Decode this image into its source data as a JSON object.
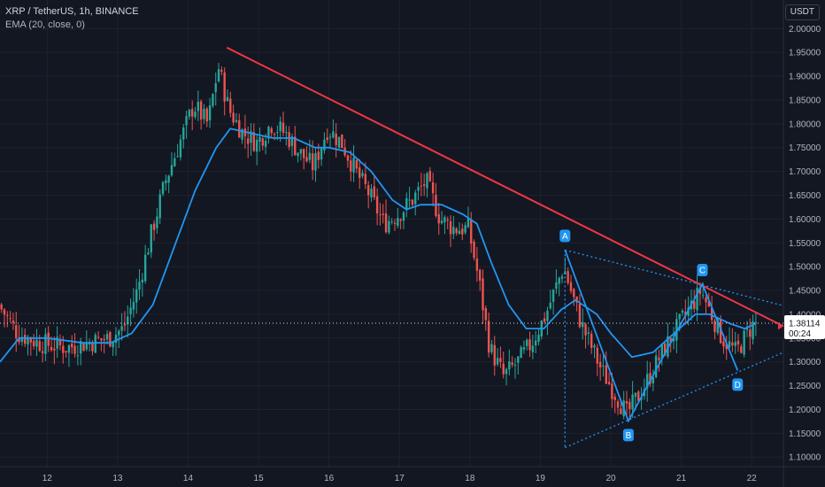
{
  "header": {
    "title": "XRP / TetherUS, 1h, BINANCE",
    "indicator": "EMA (20, close, 0)"
  },
  "currency_button": "USDT",
  "chart_data": {
    "type": "candlestick",
    "symbol": "XRP / TetherUS",
    "timeframe": "1h",
    "exchange": "BINANCE",
    "ylim": [
      1.08,
      2.06
    ],
    "y_ticks": [
      "2.00000",
      "1.95000",
      "1.90000",
      "1.85000",
      "1.80000",
      "1.75000",
      "1.70000",
      "1.65000",
      "1.60000",
      "1.55000",
      "1.50000",
      "1.45000",
      "1.40000",
      "1.35000",
      "1.30000",
      "1.25000",
      "1.20000",
      "1.15000",
      "1.10000"
    ],
    "x_range_days": [
      11.33,
      22.45
    ],
    "x_ticks": [
      {
        "day": 12,
        "label": "12"
      },
      {
        "day": 13,
        "label": "13"
      },
      {
        "day": 14,
        "label": "14"
      },
      {
        "day": 15,
        "label": "15"
      },
      {
        "day": 16,
        "label": "16"
      },
      {
        "day": 17,
        "label": "17"
      },
      {
        "day": 18,
        "label": "18"
      },
      {
        "day": 19,
        "label": "19"
      },
      {
        "day": 20,
        "label": "20"
      },
      {
        "day": 21,
        "label": "21"
      },
      {
        "day": 22,
        "label": "22"
      }
    ],
    "colors": {
      "up": "#26a69a",
      "down": "#ef5350",
      "ema": "#2196f3",
      "trend": "#f23645",
      "pattern": "#2196f3",
      "triangle": "#2196f3"
    },
    "price_path": [
      [
        11.33,
        1.42
      ],
      [
        11.6,
        1.36
      ],
      [
        11.9,
        1.34
      ],
      [
        12.3,
        1.33
      ],
      [
        12.6,
        1.34
      ],
      [
        12.9,
        1.35
      ],
      [
        13.1,
        1.37
      ],
      [
        13.3,
        1.45
      ],
      [
        13.5,
        1.57
      ],
      [
        13.7,
        1.68
      ],
      [
        13.9,
        1.76
      ],
      [
        14.1,
        1.84
      ],
      [
        14.3,
        1.8
      ],
      [
        14.45,
        1.92
      ],
      [
        14.6,
        1.83
      ],
      [
        14.8,
        1.78
      ],
      [
        15.0,
        1.76
      ],
      [
        15.2,
        1.8
      ],
      [
        15.4,
        1.78
      ],
      [
        15.6,
        1.74
      ],
      [
        15.8,
        1.71
      ],
      [
        16.0,
        1.79
      ],
      [
        16.2,
        1.76
      ],
      [
        16.4,
        1.7
      ],
      [
        16.6,
        1.65
      ],
      [
        16.8,
        1.59
      ],
      [
        17.0,
        1.61
      ],
      [
        17.2,
        1.64
      ],
      [
        17.4,
        1.68
      ],
      [
        17.6,
        1.6
      ],
      [
        17.8,
        1.58
      ],
      [
        18.0,
        1.58
      ],
      [
        18.15,
        1.47
      ],
      [
        18.3,
        1.33
      ],
      [
        18.5,
        1.27
      ],
      [
        18.7,
        1.3
      ],
      [
        18.9,
        1.34
      ],
      [
        19.1,
        1.4
      ],
      [
        19.35,
        1.5
      ],
      [
        19.6,
        1.38
      ],
      [
        19.9,
        1.28
      ],
      [
        20.25,
        1.19
      ],
      [
        20.5,
        1.25
      ],
      [
        20.75,
        1.32
      ],
      [
        21.0,
        1.38
      ],
      [
        21.3,
        1.45
      ],
      [
        21.6,
        1.35
      ],
      [
        21.8,
        1.32
      ],
      [
        22.0,
        1.37
      ],
      [
        22.05,
        1.38
      ]
    ],
    "ema": [
      [
        11.33,
        1.3
      ],
      [
        11.6,
        1.35
      ],
      [
        12.0,
        1.35
      ],
      [
        12.5,
        1.34
      ],
      [
        12.9,
        1.34
      ],
      [
        13.2,
        1.36
      ],
      [
        13.5,
        1.42
      ],
      [
        13.8,
        1.54
      ],
      [
        14.1,
        1.66
      ],
      [
        14.4,
        1.75
      ],
      [
        14.6,
        1.79
      ],
      [
        14.9,
        1.78
      ],
      [
        15.2,
        1.77
      ],
      [
        15.5,
        1.77
      ],
      [
        15.8,
        1.75
      ],
      [
        16.0,
        1.75
      ],
      [
        16.3,
        1.74
      ],
      [
        16.6,
        1.7
      ],
      [
        16.9,
        1.64
      ],
      [
        17.1,
        1.62
      ],
      [
        17.3,
        1.63
      ],
      [
        17.6,
        1.63
      ],
      [
        17.9,
        1.61
      ],
      [
        18.1,
        1.59
      ],
      [
        18.3,
        1.51
      ],
      [
        18.55,
        1.42
      ],
      [
        18.8,
        1.37
      ],
      [
        19.05,
        1.37
      ],
      [
        19.3,
        1.41
      ],
      [
        19.5,
        1.43
      ],
      [
        19.8,
        1.4
      ],
      [
        20.0,
        1.36
      ],
      [
        20.3,
        1.31
      ],
      [
        20.6,
        1.32
      ],
      [
        20.9,
        1.36
      ],
      [
        21.2,
        1.4
      ],
      [
        21.4,
        1.4
      ],
      [
        21.7,
        1.38
      ],
      [
        21.9,
        1.37
      ],
      [
        22.05,
        1.38
      ]
    ],
    "trendline": [
      [
        14.55,
        1.96
      ],
      [
        22.45,
        1.375
      ]
    ],
    "pattern": [
      {
        "label": "A",
        "day": 19.35,
        "price": 1.535
      },
      {
        "label": "B",
        "day": 20.25,
        "price": 1.176
      },
      {
        "label": "C",
        "day": 21.3,
        "price": 1.463
      },
      {
        "label": "D",
        "day": 21.8,
        "price": 1.282
      }
    ],
    "triangle_upper": [
      [
        19.35,
        1.535
      ],
      [
        22.45,
        1.418
      ]
    ],
    "triangle_lower": [
      [
        19.35,
        1.12
      ],
      [
        22.45,
        1.32
      ]
    ],
    "triangle_vertical_day": 19.35,
    "current_price": 1.38114,
    "current_price_label": "1.38114",
    "countdown": "00:24",
    "trend_end_label": "",
    "watermark_top_tick": "2.05000"
  }
}
